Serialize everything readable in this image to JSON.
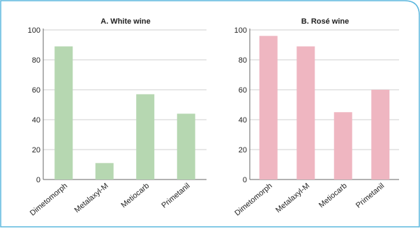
{
  "colors": {
    "border": "#5bb7de",
    "white_bar": "#b6d7b1",
    "rose_bar": "#efb6c1",
    "axis": "#666666",
    "grid": "#cfcfcf",
    "text": "#222222"
  },
  "chart_data": [
    {
      "type": "bar",
      "title": "A. White wine",
      "categories": [
        "Dimetomorph",
        "Metalaxyl-M",
        "Metiocarb",
        "Primetanil"
      ],
      "values": [
        89,
        11,
        57,
        44
      ],
      "ylim": [
        0,
        100
      ],
      "yticks": [
        0,
        20,
        40,
        60,
        80,
        100
      ],
      "xlabel": "",
      "ylabel": "",
      "color": "#b6d7b1"
    },
    {
      "type": "bar",
      "title": "B. Rosé wine",
      "categories": [
        "Dimetomorph",
        "Metalaxyl-M",
        "Metiocarb",
        "Primetanil"
      ],
      "values": [
        96,
        89,
        45,
        60
      ],
      "ylim": [
        0,
        100
      ],
      "yticks": [
        0,
        20,
        40,
        60,
        80,
        100
      ],
      "xlabel": "",
      "ylabel": "",
      "color": "#efb6c1"
    }
  ]
}
